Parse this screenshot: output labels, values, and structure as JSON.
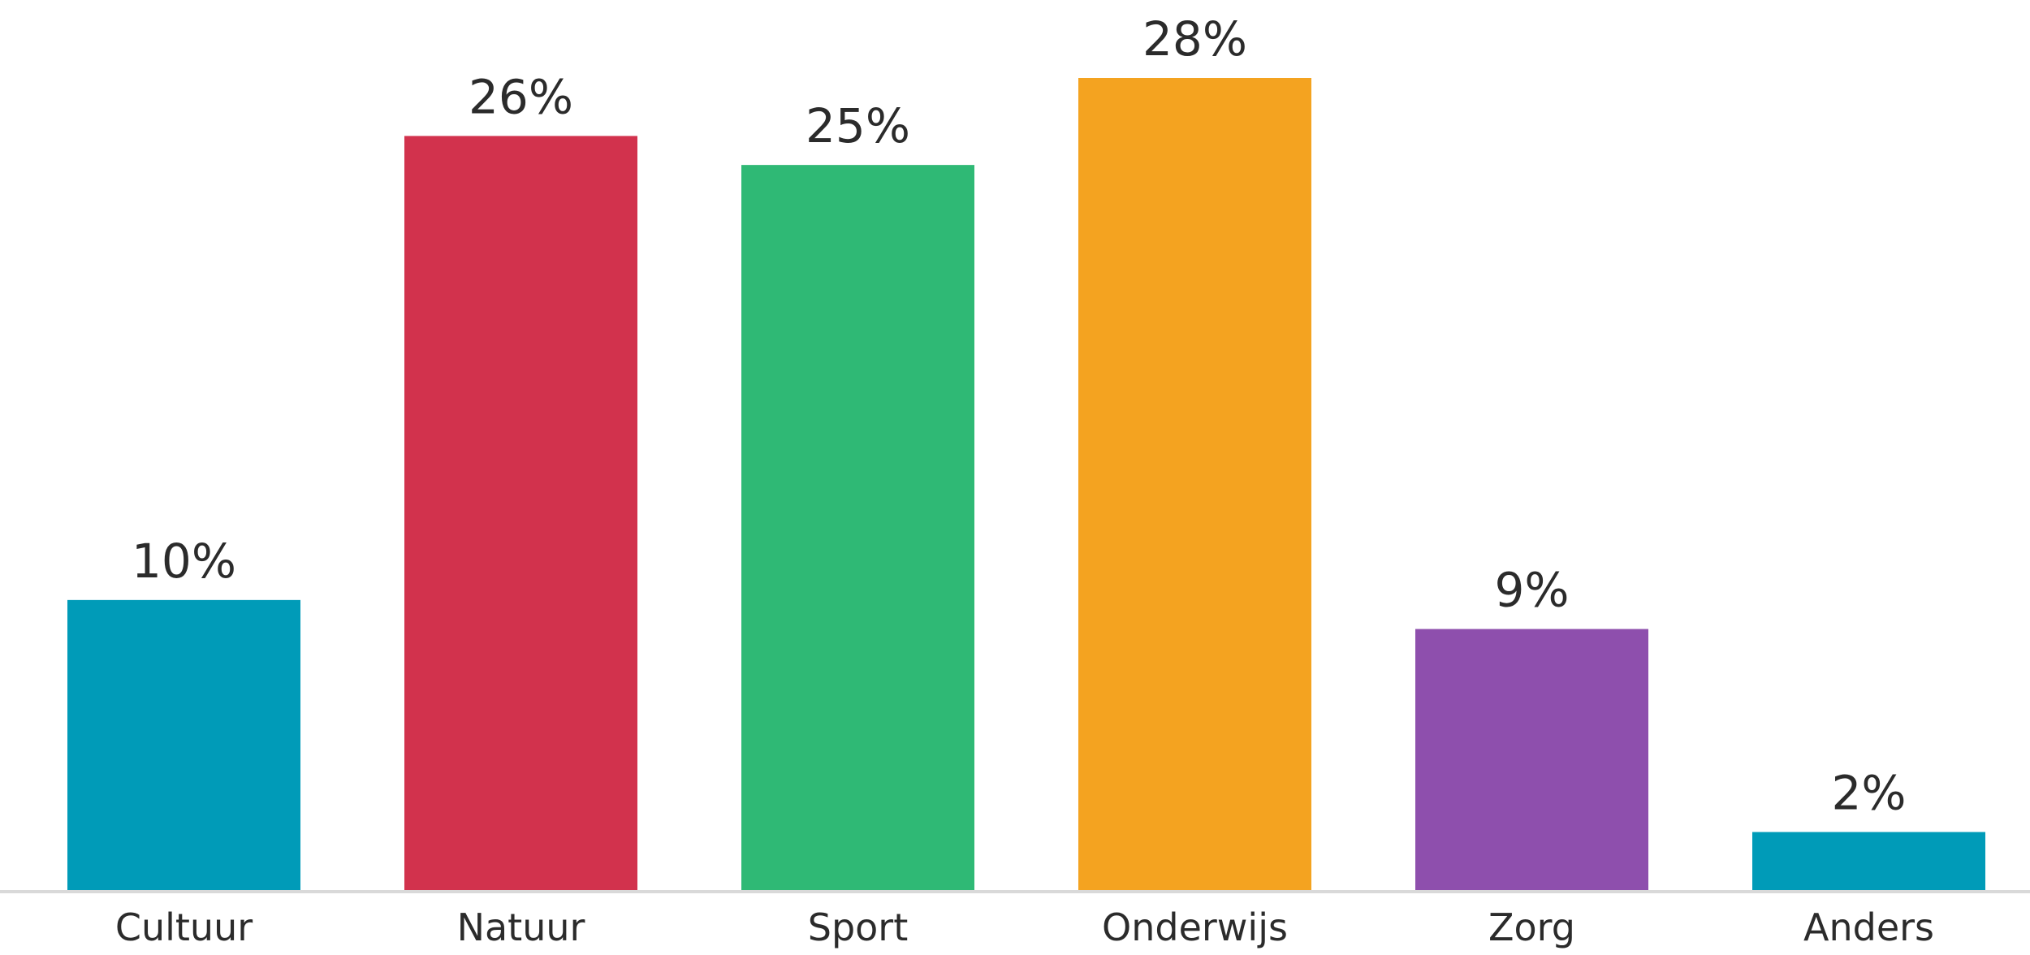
{
  "chart_data": {
    "type": "bar",
    "categories": [
      "Cultuur",
      "Natuur",
      "Sport",
      "Onderwijs",
      "Zorg",
      "Anders"
    ],
    "values": [
      10,
      26,
      25,
      28,
      9,
      2
    ],
    "value_labels": [
      "10%",
      "26%",
      "25%",
      "28%",
      "9%",
      "2%"
    ],
    "colors": [
      "#009bb8",
      "#d2324d",
      "#2fb975",
      "#f4a320",
      "#8e4fad",
      "#009bb8"
    ]
  }
}
